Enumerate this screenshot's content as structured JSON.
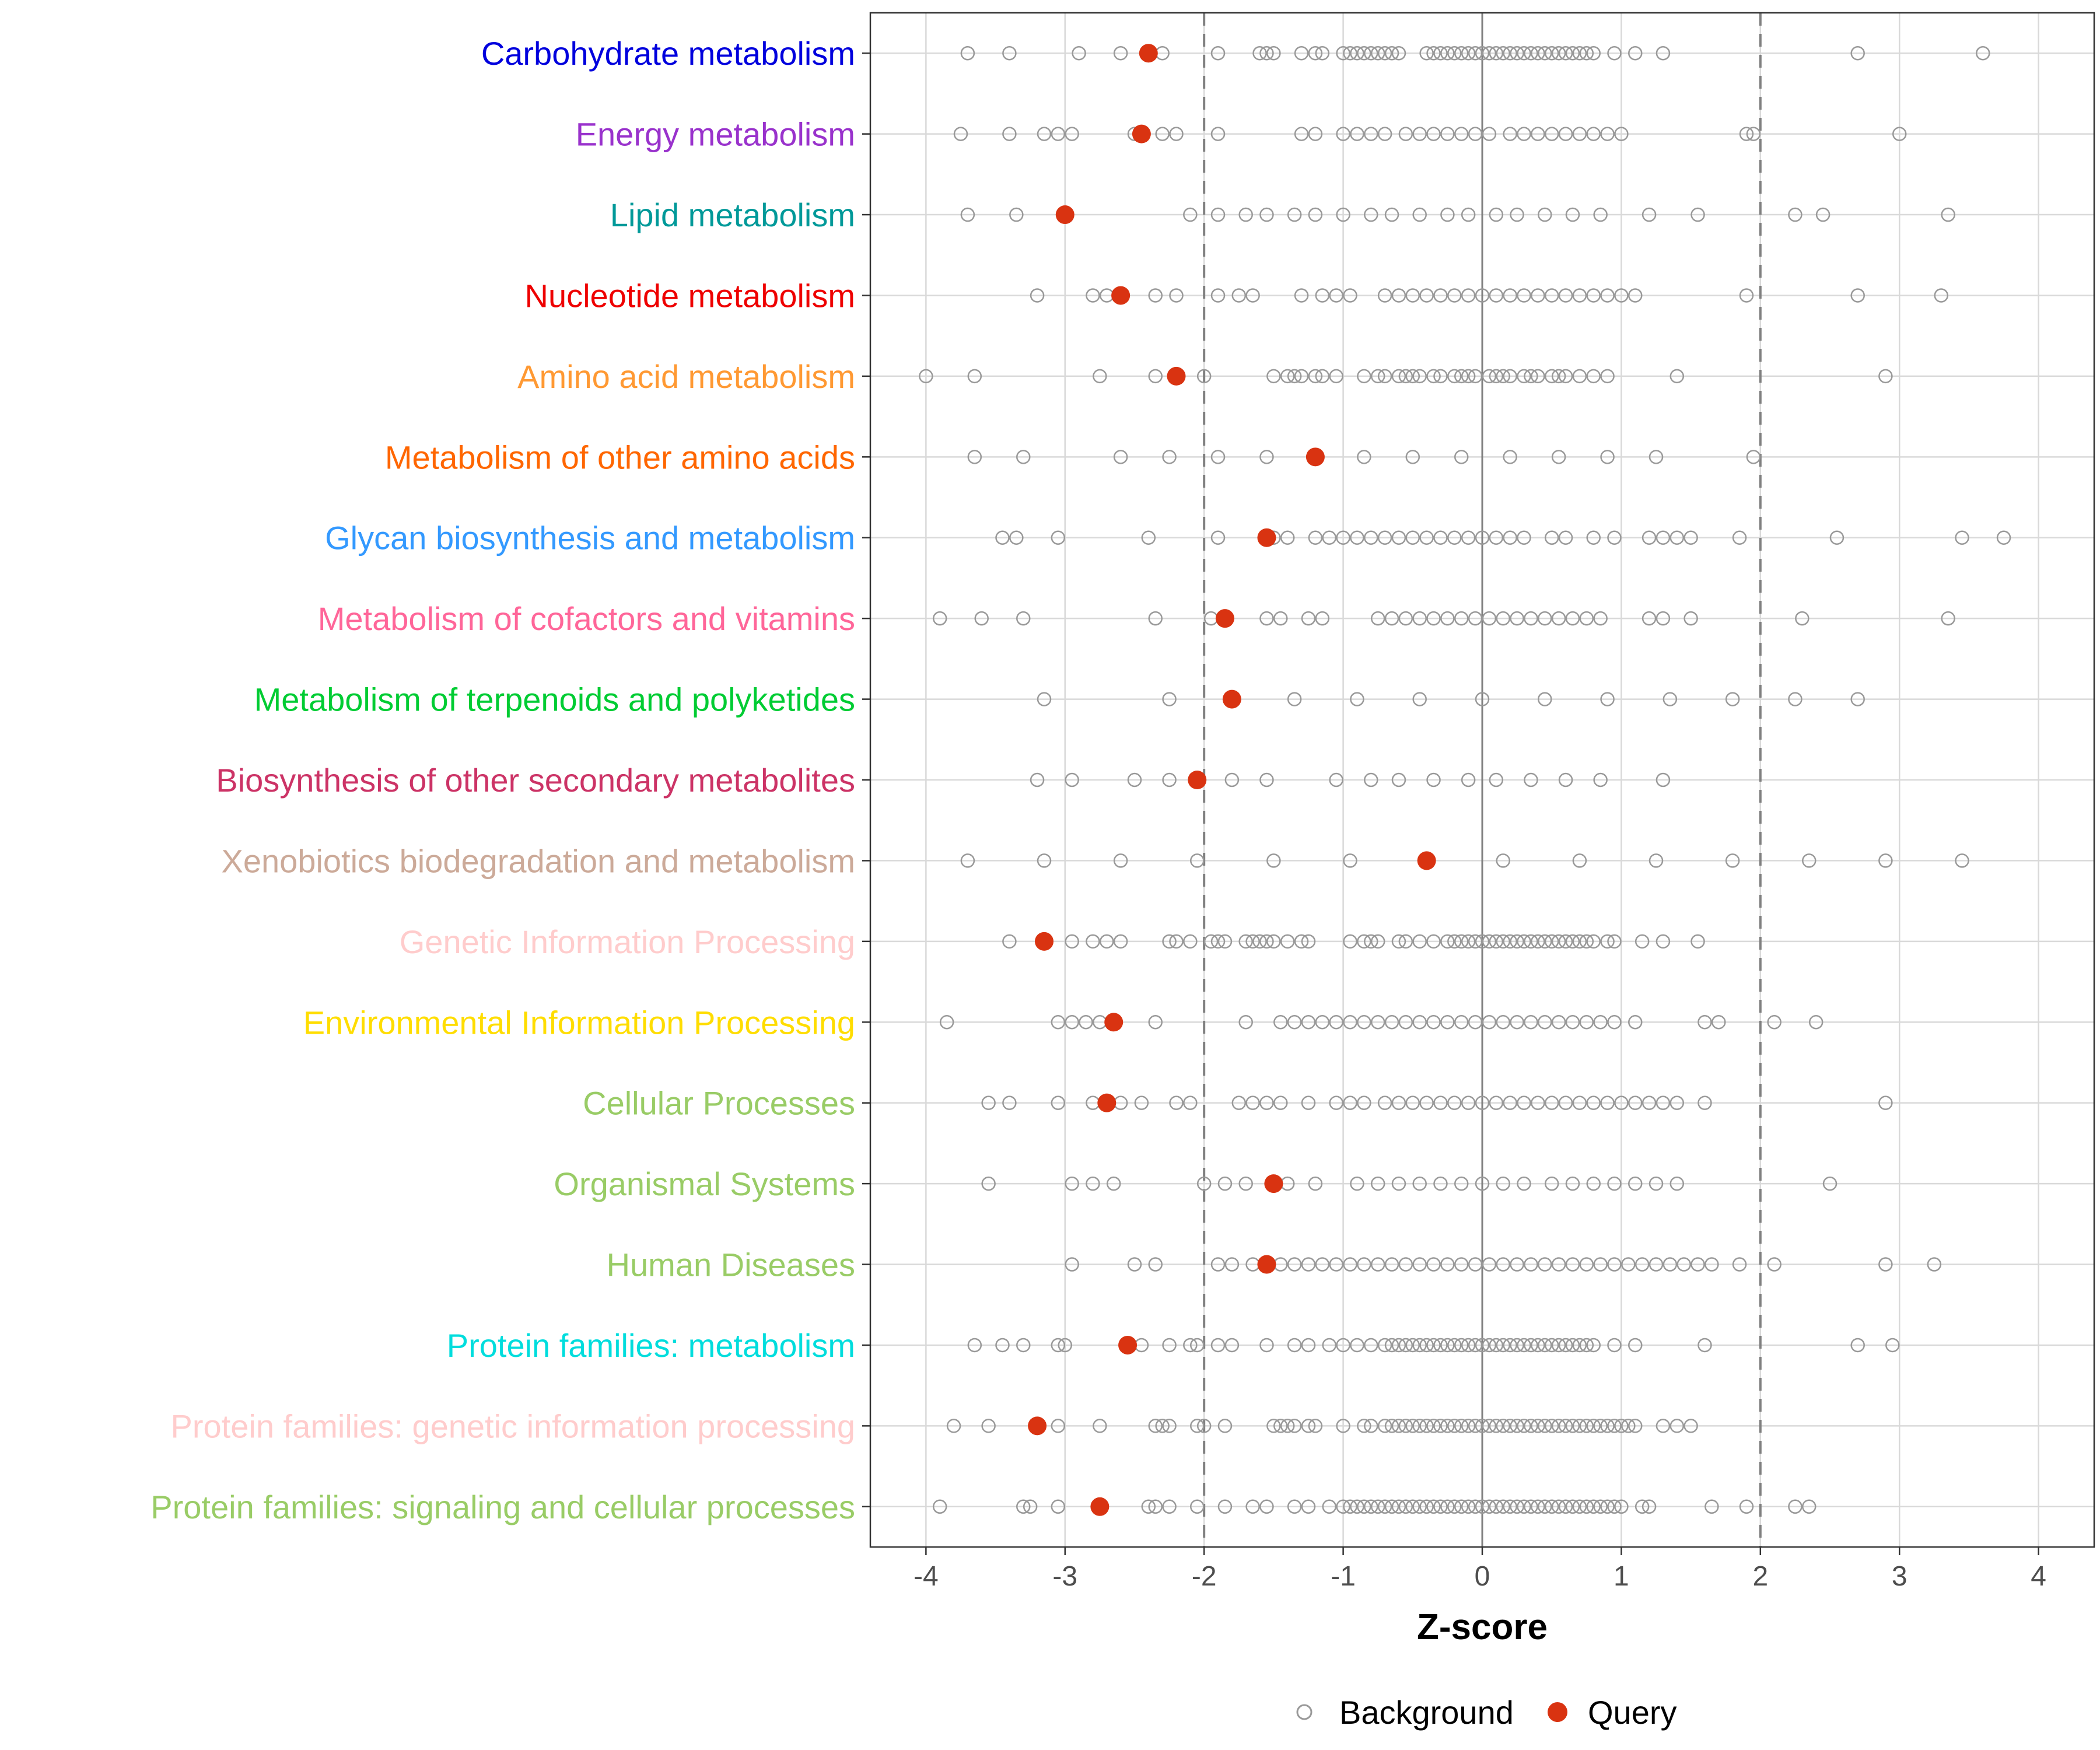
{
  "chart_data": {
    "type": "scatter",
    "xlabel": "Z-score",
    "xlim": [
      -4.4,
      4.4
    ],
    "x_ticks": [
      "-4",
      "-3",
      "-2",
      "-1",
      "0",
      "1",
      "2",
      "3",
      "4"
    ],
    "reference_lines": {
      "solid": 0,
      "dashed": [
        -2,
        2
      ]
    },
    "grid": true,
    "legend": {
      "position": "bottom",
      "items": [
        {
          "label": "Background",
          "marker": "hollow-circle",
          "color": "#999999"
        },
        {
          "label": "Query",
          "marker": "filled-circle",
          "color": "#d93311"
        }
      ]
    },
    "categories": [
      {
        "name": "Carbohydrate metabolism",
        "color": "#0000dd",
        "query": -2.4,
        "background": [
          -3.7,
          -3.4,
          -2.9,
          -2.6,
          -2.3,
          -1.9,
          -1.6,
          -1.55,
          -1.5,
          -1.3,
          -1.2,
          -1.15,
          -1.0,
          -0.95,
          -0.9,
          -0.85,
          -0.8,
          -0.75,
          -0.7,
          -0.65,
          -0.6,
          -0.4,
          -0.35,
          -0.3,
          -0.25,
          -0.2,
          -0.15,
          -0.1,
          -0.05,
          0.0,
          0.05,
          0.1,
          0.15,
          0.2,
          0.25,
          0.3,
          0.35,
          0.4,
          0.45,
          0.5,
          0.55,
          0.6,
          0.65,
          0.7,
          0.75,
          0.8,
          0.95,
          1.1,
          1.3,
          2.7,
          3.6
        ]
      },
      {
        "name": "Energy metabolism",
        "color": "#9932cc",
        "query": -2.45,
        "background": [
          -3.75,
          -3.4,
          -3.15,
          -3.05,
          -2.95,
          -2.5,
          -2.3,
          -2.2,
          -1.9,
          -1.3,
          -1.2,
          -1.0,
          -0.9,
          -0.8,
          -0.7,
          -0.55,
          -0.45,
          -0.35,
          -0.25,
          -0.15,
          -0.05,
          0.05,
          0.2,
          0.3,
          0.4,
          0.5,
          0.6,
          0.7,
          0.8,
          0.9,
          1.0,
          1.9,
          1.95,
          3.0
        ]
      },
      {
        "name": "Lipid metabolism",
        "color": "#009999",
        "query": -3.0,
        "background": [
          -3.7,
          -3.35,
          -2.1,
          -1.9,
          -1.7,
          -1.55,
          -1.35,
          -1.2,
          -1.0,
          -0.8,
          -0.65,
          -0.45,
          -0.25,
          -0.1,
          0.1,
          0.25,
          0.45,
          0.65,
          0.85,
          1.2,
          1.55,
          2.25,
          2.45,
          3.35
        ]
      },
      {
        "name": "Nucleotide metabolism",
        "color": "#ee0000",
        "query": -2.6,
        "background": [
          -3.2,
          -2.8,
          -2.7,
          -2.35,
          -2.2,
          -1.9,
          -1.75,
          -1.65,
          -1.3,
          -1.15,
          -1.05,
          -0.95,
          -0.7,
          -0.6,
          -0.5,
          -0.4,
          -0.3,
          -0.2,
          -0.1,
          0.0,
          0.1,
          0.2,
          0.3,
          0.4,
          0.5,
          0.6,
          0.7,
          0.8,
          0.9,
          1.0,
          1.1,
          1.9,
          2.7,
          3.3
        ]
      },
      {
        "name": "Amino acid metabolism",
        "color": "#ff9933",
        "query": -2.2,
        "background": [
          -4.0,
          -3.65,
          -2.75,
          -2.35,
          -2.0,
          -1.5,
          -1.4,
          -1.35,
          -1.3,
          -1.2,
          -1.15,
          -1.05,
          -0.85,
          -0.75,
          -0.7,
          -0.6,
          -0.55,
          -0.5,
          -0.45,
          -0.35,
          -0.3,
          -0.2,
          -0.15,
          -0.1,
          -0.05,
          0.05,
          0.1,
          0.15,
          0.2,
          0.3,
          0.35,
          0.4,
          0.5,
          0.55,
          0.6,
          0.7,
          0.8,
          0.9,
          1.4,
          2.9
        ]
      },
      {
        "name": "Metabolism of other amino acids",
        "color": "#ff6600",
        "query": -1.2,
        "background": [
          -3.65,
          -3.3,
          -2.6,
          -2.25,
          -1.9,
          -1.55,
          -0.85,
          -0.5,
          -0.15,
          0.2,
          0.55,
          0.9,
          1.25,
          1.95
        ]
      },
      {
        "name": "Glycan biosynthesis and metabolism",
        "color": "#3399ff",
        "query": -1.55,
        "background": [
          -3.45,
          -3.35,
          -3.05,
          -2.4,
          -1.9,
          -1.5,
          -1.4,
          -1.2,
          -1.1,
          -1.0,
          -0.9,
          -0.8,
          -0.7,
          -0.6,
          -0.5,
          -0.4,
          -0.3,
          -0.2,
          -0.1,
          0.0,
          0.1,
          0.2,
          0.3,
          0.5,
          0.6,
          0.8,
          0.95,
          1.2,
          1.3,
          1.4,
          1.5,
          1.85,
          2.55,
          3.45,
          3.75
        ]
      },
      {
        "name": "Metabolism of cofactors and vitamins",
        "color": "#ff6699",
        "query": -1.85,
        "background": [
          -3.9,
          -3.6,
          -3.3,
          -2.35,
          -1.95,
          -1.55,
          -1.45,
          -1.25,
          -1.15,
          -0.75,
          -0.65,
          -0.55,
          -0.45,
          -0.35,
          -0.25,
          -0.15,
          -0.05,
          0.05,
          0.15,
          0.25,
          0.35,
          0.45,
          0.55,
          0.65,
          0.75,
          0.85,
          1.2,
          1.3,
          1.5,
          2.3,
          3.35
        ]
      },
      {
        "name": "Metabolism of terpenoids and polyketides",
        "color": "#00cc33",
        "query": -1.8,
        "background": [
          -3.15,
          -2.25,
          -1.35,
          -0.9,
          -0.45,
          0.0,
          0.45,
          0.9,
          1.35,
          1.8,
          2.25,
          2.7
        ]
      },
      {
        "name": "Biosynthesis of other secondary metabolites",
        "color": "#cc3366",
        "query": -2.05,
        "background": [
          -3.2,
          -2.95,
          -2.5,
          -2.25,
          -1.8,
          -1.55,
          -1.05,
          -0.8,
          -0.6,
          -0.35,
          -0.1,
          0.1,
          0.35,
          0.6,
          0.85,
          1.3
        ]
      },
      {
        "name": "Xenobiotics biodegradation and metabolism",
        "color": "#ccaa99",
        "query": -0.4,
        "background": [
          -3.7,
          -3.15,
          -2.6,
          -2.05,
          -1.5,
          -0.95,
          0.15,
          0.7,
          1.25,
          1.8,
          2.35,
          2.9,
          3.45
        ]
      },
      {
        "name": "Genetic Information Processing",
        "color": "#ffcccc",
        "query": -3.15,
        "background": [
          -3.4,
          -2.95,
          -2.8,
          -2.7,
          -2.6,
          -2.25,
          -2.2,
          -2.1,
          -1.95,
          -1.9,
          -1.85,
          -1.7,
          -1.65,
          -1.6,
          -1.55,
          -1.5,
          -1.4,
          -1.3,
          -1.25,
          -0.95,
          -0.85,
          -0.8,
          -0.75,
          -0.6,
          -0.55,
          -0.45,
          -0.35,
          -0.25,
          -0.2,
          -0.15,
          -0.1,
          -0.05,
          0.0,
          0.05,
          0.1,
          0.15,
          0.2,
          0.25,
          0.3,
          0.35,
          0.4,
          0.45,
          0.5,
          0.55,
          0.6,
          0.65,
          0.7,
          0.75,
          0.8,
          0.9,
          0.95,
          1.15,
          1.3,
          1.55
        ]
      },
      {
        "name": "Environmental Information Processing",
        "color": "#ffdd00",
        "query": -2.65,
        "background": [
          -3.85,
          -3.05,
          -2.95,
          -2.85,
          -2.75,
          -2.35,
          -1.7,
          -1.45,
          -1.35,
          -1.25,
          -1.15,
          -1.05,
          -0.95,
          -0.85,
          -0.75,
          -0.65,
          -0.55,
          -0.45,
          -0.35,
          -0.25,
          -0.15,
          -0.05,
          0.05,
          0.15,
          0.25,
          0.35,
          0.45,
          0.55,
          0.65,
          0.75,
          0.85,
          0.95,
          1.1,
          1.6,
          1.7,
          2.1,
          2.4
        ]
      },
      {
        "name": "Cellular Processes",
        "color": "#99cc66",
        "query": -2.7,
        "background": [
          -3.55,
          -3.4,
          -3.05,
          -2.8,
          -2.6,
          -2.45,
          -2.2,
          -2.1,
          -1.75,
          -1.65,
          -1.55,
          -1.45,
          -1.25,
          -1.05,
          -0.95,
          -0.85,
          -0.7,
          -0.6,
          -0.5,
          -0.4,
          -0.3,
          -0.2,
          -0.1,
          0.0,
          0.1,
          0.2,
          0.3,
          0.4,
          0.5,
          0.6,
          0.7,
          0.8,
          0.9,
          1.0,
          1.1,
          1.2,
          1.3,
          1.4,
          1.6,
          2.9
        ]
      },
      {
        "name": "Organismal Systems",
        "color": "#99cc66",
        "query": -1.5,
        "background": [
          -3.55,
          -2.95,
          -2.8,
          -2.65,
          -2.0,
          -1.85,
          -1.7,
          -1.4,
          -1.2,
          -0.9,
          -0.75,
          -0.6,
          -0.45,
          -0.3,
          -0.15,
          0.0,
          0.15,
          0.3,
          0.5,
          0.65,
          0.8,
          0.95,
          1.1,
          1.25,
          1.4,
          2.5
        ]
      },
      {
        "name": "Human Diseases",
        "color": "#99cc66",
        "query": -1.55,
        "background": [
          -2.95,
          -2.5,
          -2.35,
          -1.9,
          -1.8,
          -1.65,
          -1.45,
          -1.35,
          -1.25,
          -1.15,
          -1.05,
          -0.95,
          -0.85,
          -0.75,
          -0.65,
          -0.55,
          -0.45,
          -0.35,
          -0.25,
          -0.15,
          -0.05,
          0.05,
          0.15,
          0.25,
          0.35,
          0.45,
          0.55,
          0.65,
          0.75,
          0.85,
          0.95,
          1.05,
          1.15,
          1.25,
          1.35,
          1.45,
          1.55,
          1.65,
          1.85,
          2.1,
          2.9,
          3.25
        ]
      },
      {
        "name": "Protein families: metabolism",
        "color": "#00dddd",
        "query": -2.55,
        "background": [
          -3.65,
          -3.45,
          -3.3,
          -3.05,
          -3.0,
          -2.45,
          -2.25,
          -2.1,
          -2.05,
          -1.9,
          -1.8,
          -1.55,
          -1.35,
          -1.25,
          -1.1,
          -1.0,
          -0.9,
          -0.8,
          -0.7,
          -0.65,
          -0.6,
          -0.55,
          -0.5,
          -0.45,
          -0.4,
          -0.35,
          -0.3,
          -0.25,
          -0.2,
          -0.15,
          -0.1,
          -0.05,
          0.0,
          0.05,
          0.1,
          0.15,
          0.2,
          0.25,
          0.3,
          0.35,
          0.4,
          0.45,
          0.5,
          0.55,
          0.6,
          0.65,
          0.7,
          0.75,
          0.8,
          0.95,
          1.1,
          1.6,
          2.7,
          2.95
        ]
      },
      {
        "name": "Protein families: genetic information processing",
        "color": "#ffcccc",
        "query": -3.2,
        "background": [
          -3.8,
          -3.55,
          -3.05,
          -2.75,
          -2.35,
          -2.3,
          -2.25,
          -2.05,
          -2.0,
          -1.85,
          -1.5,
          -1.45,
          -1.4,
          -1.35,
          -1.25,
          -1.2,
          -1.0,
          -0.85,
          -0.8,
          -0.7,
          -0.65,
          -0.6,
          -0.55,
          -0.5,
          -0.45,
          -0.4,
          -0.35,
          -0.3,
          -0.25,
          -0.2,
          -0.15,
          -0.1,
          -0.05,
          0.0,
          0.05,
          0.1,
          0.15,
          0.2,
          0.25,
          0.3,
          0.35,
          0.4,
          0.45,
          0.5,
          0.55,
          0.6,
          0.65,
          0.7,
          0.75,
          0.8,
          0.85,
          0.9,
          0.95,
          1.0,
          1.05,
          1.1,
          1.3,
          1.4,
          1.5
        ]
      },
      {
        "name": "Protein families: signaling and cellular processes",
        "color": "#99cc66",
        "query": -2.75,
        "background": [
          -3.9,
          -3.3,
          -3.25,
          -3.05,
          -2.75,
          -2.4,
          -2.35,
          -2.25,
          -2.05,
          -1.85,
          -1.65,
          -1.55,
          -1.35,
          -1.25,
          -1.1,
          -1.0,
          -0.95,
          -0.9,
          -0.85,
          -0.8,
          -0.75,
          -0.7,
          -0.65,
          -0.6,
          -0.55,
          -0.5,
          -0.45,
          -0.4,
          -0.35,
          -0.3,
          -0.25,
          -0.2,
          -0.15,
          -0.1,
          -0.05,
          0.0,
          0.05,
          0.1,
          0.15,
          0.2,
          0.25,
          0.3,
          0.35,
          0.4,
          0.45,
          0.5,
          0.55,
          0.6,
          0.65,
          0.7,
          0.75,
          0.8,
          0.85,
          0.9,
          0.95,
          1.0,
          1.15,
          1.2,
          1.65,
          1.9,
          2.25,
          2.35
        ]
      }
    ]
  }
}
